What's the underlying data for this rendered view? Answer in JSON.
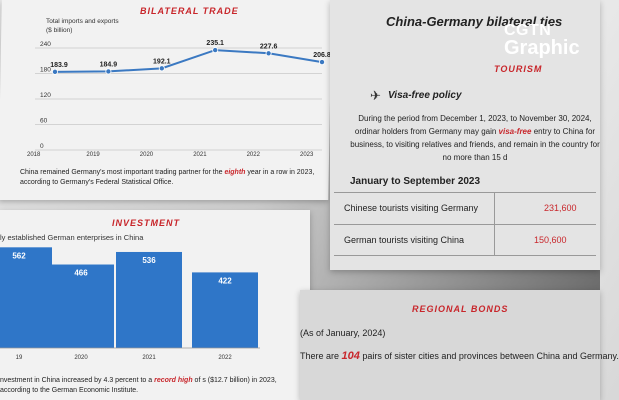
{
  "trade": {
    "section_title": "BILATERAL TRADE",
    "chart_title": "Total imports and exports",
    "chart_unit": "($ billion)",
    "caption_pre": "China remained Germany's most important trading partner for the ",
    "caption_hl": "eighth",
    "caption_post": " year in a row in 2023, according to Germany's Federal Statistical Office."
  },
  "investment": {
    "section_title": "INVESTMENT",
    "chart_title": "ly established German enterprises in China",
    "caption_pre": "nvestment in China increased by 4.3 percent to a ",
    "caption_hl": "record high",
    "caption_post": " of s ($12.7 billion) in 2023, according to the German Economic Institute."
  },
  "tourism": {
    "heading": "China-Germany bilateral ties",
    "section_title": "TOURISM",
    "policy_title": "Visa-free policy",
    "policy_pre": "During the period from December 1, 2023, to November 30, 2024, ordinar holders from Germany may gain ",
    "policy_hl": "visa-free",
    "policy_post": " entry to China for business, to visiting relatives and friends, and remain in the country for no more than 15 d",
    "table_title": "January to September 2023",
    "rows": [
      {
        "label": "Chinese tourists visiting Germany",
        "value": "231,600"
      },
      {
        "label": "German tourists visiting China",
        "value": "150,600"
      }
    ]
  },
  "bonds": {
    "section_title": "REGIONAL BONDS",
    "as_of": "(As of January, 2024)",
    "text_pre": "There are ",
    "text_hl": "104",
    "text_post": " pairs of sister cities and provinces between China and Germany."
  },
  "logo": {
    "line1": "CGTN",
    "line2": "Graphic"
  },
  "colors": {
    "accent": "#c8262b",
    "bar": "#2f76c8",
    "line": "#3b79c2"
  },
  "chart_data": [
    {
      "type": "line",
      "x": [
        "2018",
        "2019",
        "2020",
        "2021",
        "2022",
        "2023"
      ],
      "series": [
        {
          "values": [
            183.9,
            184.9,
            192.1,
            235.1,
            227.6,
            206.8
          ]
        }
      ],
      "y_ticks": [
        0,
        60,
        120,
        180,
        240
      ],
      "ylim": [
        0,
        240
      ],
      "value_labels": [
        "183.9",
        "184.9",
        "192.1",
        "235.1",
        "227.6",
        "206.8"
      ]
    },
    {
      "type": "bar",
      "categories": [
        "19",
        "2020",
        "2021",
        "2022"
      ],
      "values": [
        562,
        466,
        536,
        422
      ],
      "value_labels": [
        "562",
        "466",
        "536",
        "422"
      ],
      "ylim": [
        0,
        640
      ]
    }
  ]
}
